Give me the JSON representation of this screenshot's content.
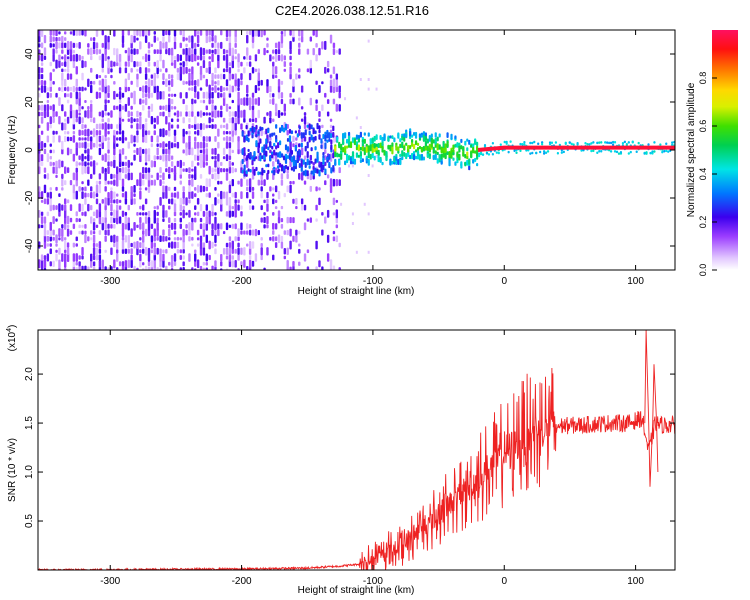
{
  "title": "C2E4.2026.038.12.51.R16",
  "chart_data": [
    {
      "type": "heatmap",
      "title": "C2E4.2026.038.12.51.R16",
      "xlabel": "Height of straight line (km)",
      "ylabel": "Frequency (Hz)",
      "xlim": [
        -355,
        130
      ],
      "ylim": [
        -50,
        50
      ],
      "xticks": [
        -300,
        -200,
        -100,
        0,
        100
      ],
      "xtick_labels": [
        "-300",
        "-200",
        "-100",
        "0",
        "100"
      ],
      "yticks": [
        -40,
        -20,
        0,
        20,
        40
      ],
      "ytick_labels": [
        "-40",
        "-20",
        "0",
        "20",
        "40"
      ],
      "colorbar": {
        "label": "Normalized spectral amplitude",
        "range": [
          0,
          1
        ],
        "ticks": [
          0.0,
          0.2,
          0.4,
          0.6,
          0.8
        ],
        "tick_labels": [
          "0.0",
          "0.2",
          "0.4",
          "0.6",
          "0.8"
        ]
      },
      "ridge": {
        "description_x_km": [
          -130,
          -110,
          -90,
          -70,
          -55,
          -40,
          -30,
          -20,
          0,
          50,
          100,
          130
        ],
        "frequency_hz": [
          0,
          1,
          0,
          2,
          1,
          0,
          -2,
          0,
          1,
          1,
          1,
          1
        ]
      }
    },
    {
      "type": "line",
      "xlabel": "Height of straight line (km)",
      "ylabel": "SNR (10 * v/v)",
      "y_multiplier": "(x10",
      "y_multiplier_exp": "4",
      "y_multiplier_close": ")",
      "xlim": [
        -355,
        130
      ],
      "ylim": [
        0,
        2.45
      ],
      "y_units": "x10^4",
      "xticks": [
        -300,
        -200,
        -100,
        0,
        100
      ],
      "xtick_labels": [
        "-300",
        "-200",
        "-100",
        "0",
        "100"
      ],
      "yticks": [
        0.5,
        1.0,
        1.5,
        2.0
      ],
      "ytick_labels": [
        "0.5",
        "1.0",
        "1.5",
        "2.0"
      ],
      "series": [
        {
          "name": "SNR",
          "color": "#ee2222",
          "x": [
            -355,
            -200,
            -150,
            -125,
            -110,
            -100,
            -90,
            -80,
            -70,
            -60,
            -50,
            -40,
            -30,
            -20,
            -10,
            0,
            10,
            20,
            30,
            40,
            60,
            80,
            95,
            105,
            110,
            115,
            120,
            130
          ],
          "y": [
            0.0,
            0.01,
            0.02,
            0.04,
            0.06,
            0.1,
            0.18,
            0.25,
            0.35,
            0.45,
            0.55,
            0.7,
            0.8,
            0.95,
            1.05,
            1.2,
            1.3,
            1.4,
            1.45,
            1.47,
            1.48,
            1.5,
            1.5,
            1.55,
            1.2,
            1.5,
            1.48,
            1.48
          ]
        }
      ],
      "spikes": [
        {
          "x": 108,
          "y": 2.45
        },
        {
          "x": 111,
          "y": 0.85
        },
        {
          "x": 114,
          "y": 2.1
        },
        {
          "x": 117,
          "y": 1.0
        }
      ]
    }
  ]
}
